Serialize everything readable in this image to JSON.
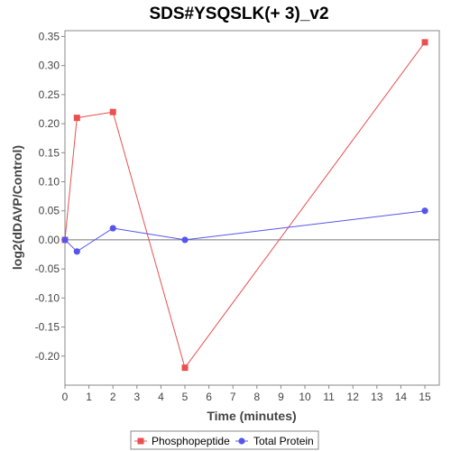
{
  "chart_data": {
    "type": "line",
    "title": "SDS#YSQSLK(+ 3)_v2",
    "xlabel": "Time (minutes)",
    "ylabel": "log2(dDAVP/Control)",
    "xlim": [
      0,
      15.6
    ],
    "ylim": [
      -0.25,
      0.36
    ],
    "xticks": [
      0,
      1,
      2,
      3,
      4,
      5,
      6,
      7,
      8,
      9,
      10,
      11,
      12,
      13,
      14,
      15
    ],
    "yticks": [
      -0.2,
      -0.15,
      -0.1,
      -0.05,
      0.0,
      0.05,
      0.1,
      0.15,
      0.2,
      0.25,
      0.3,
      0.35
    ],
    "ytick_labels": [
      "-0.20",
      "-0.15",
      "-0.10",
      "-0.05",
      "0.00",
      "0.05",
      "0.10",
      "0.15",
      "0.20",
      "0.25",
      "0.30",
      "0.35"
    ],
    "grid": false,
    "zero_line": true,
    "legend_position": "bottom",
    "series": [
      {
        "name": "Phosphopeptide",
        "color": "#e8514f",
        "marker": "square",
        "x": [
          0,
          0.5,
          2,
          5,
          15
        ],
        "y": [
          0.0,
          0.21,
          0.22,
          -0.22,
          0.34
        ]
      },
      {
        "name": "Total Protein",
        "color": "#5555ee",
        "marker": "circle",
        "x": [
          0,
          0.5,
          2,
          5,
          15
        ],
        "y": [
          0.0,
          -0.02,
          0.02,
          0.0,
          0.05
        ]
      }
    ]
  }
}
